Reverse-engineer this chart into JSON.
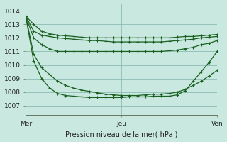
{
  "bg_color": "#c8e8e0",
  "grid_color": "#8cbcb4",
  "line_color": "#1a6020",
  "marker": "+",
  "markersize": 3,
  "linewidth": 0.9,
  "ylabel_ticks": [
    1007,
    1008,
    1009,
    1010,
    1011,
    1012,
    1013,
    1014
  ],
  "xlim": [
    0,
    48
  ],
  "ylim": [
    1006.3,
    1014.5
  ],
  "xlabel": "Pression niveau de la mer( hPa )",
  "xtick_labels": [
    "Mer",
    "Jeu",
    "Ven"
  ],
  "xtick_positions": [
    0,
    24,
    48
  ],
  "lines": [
    [
      1013.6,
      1013.0,
      1012.5,
      1012.3,
      1012.2,
      1012.15,
      1012.1,
      1012.05,
      1012.0,
      1012.0,
      1012.0,
      1012.0,
      1012.0,
      1012.0,
      1012.0,
      1012.0,
      1012.0,
      1012.0,
      1012.0,
      1012.05,
      1012.1,
      1012.1,
      1012.15,
      1012.2,
      1012.25
    ],
    [
      1013.6,
      1012.5,
      1012.2,
      1012.1,
      1012.0,
      1011.95,
      1011.9,
      1011.85,
      1011.8,
      1011.8,
      1011.75,
      1011.7,
      1011.7,
      1011.7,
      1011.7,
      1011.7,
      1011.7,
      1011.7,
      1011.75,
      1011.8,
      1011.85,
      1011.9,
      1012.0,
      1012.05,
      1012.1
    ],
    [
      1013.6,
      1012.0,
      1011.5,
      1011.2,
      1011.0,
      1011.0,
      1011.0,
      1011.0,
      1011.0,
      1011.0,
      1011.0,
      1011.0,
      1011.0,
      1011.0,
      1011.0,
      1011.0,
      1011.0,
      1011.0,
      1011.05,
      1011.1,
      1011.2,
      1011.3,
      1011.5,
      1011.6,
      1011.8
    ],
    [
      1013.6,
      1010.8,
      1009.8,
      1009.3,
      1008.8,
      1008.5,
      1008.3,
      1008.15,
      1008.05,
      1007.95,
      1007.85,
      1007.8,
      1007.75,
      1007.75,
      1007.75,
      1007.8,
      1007.85,
      1007.85,
      1007.9,
      1008.0,
      1008.2,
      1008.5,
      1008.8,
      1009.2,
      1009.6
    ],
    [
      1013.6,
      1010.3,
      1009.0,
      1008.3,
      1007.9,
      1007.75,
      1007.7,
      1007.65,
      1007.6,
      1007.6,
      1007.6,
      1007.6,
      1007.6,
      1007.65,
      1007.65,
      1007.65,
      1007.7,
      1007.7,
      1007.7,
      1007.8,
      1008.1,
      1008.8,
      1009.5,
      1010.2,
      1011.0
    ]
  ],
  "title_fontsize": 7,
  "axis_fontsize": 7,
  "tick_fontsize": 6.5
}
